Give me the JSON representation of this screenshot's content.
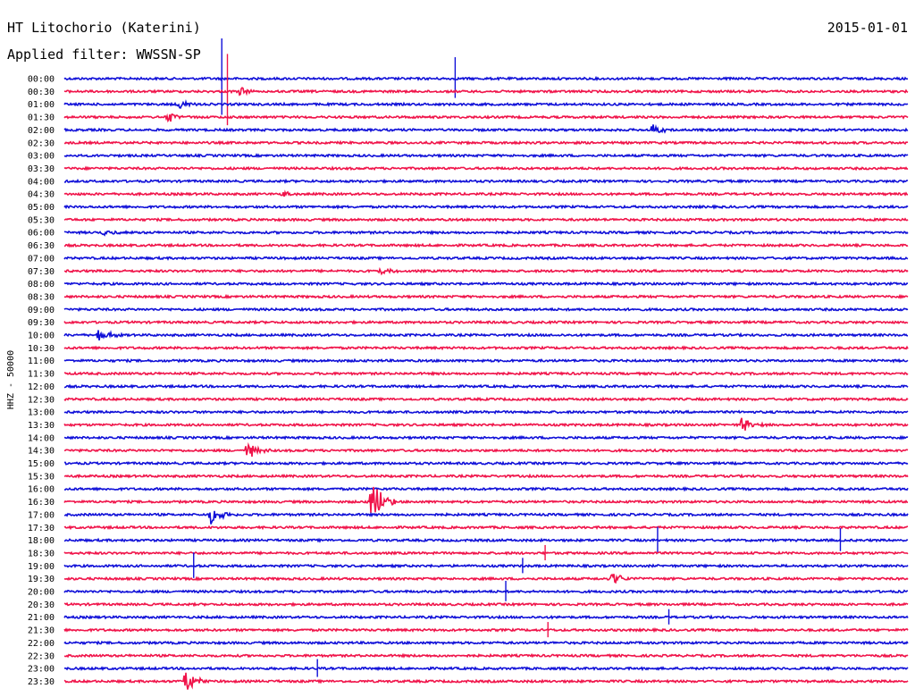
{
  "header": {
    "station": "HT Litochorio (Katerini)",
    "date": "2015-01-01",
    "filter": "Applied filter: WWSSN-SP"
  },
  "channel_label": "HHZ - 50000",
  "colors": {
    "even": "#1010d8",
    "odd": "#f0144a"
  },
  "chart_data": {
    "type": "line",
    "title": "HT Litochorio (Katerini)",
    "subtitle": "Applied filter: WWSSN-SP",
    "ylabel": "HHZ - 50000",
    "row_labels": [
      "00:00",
      "00:30",
      "01:00",
      "01:30",
      "02:00",
      "02:30",
      "03:00",
      "03:30",
      "04:00",
      "04:30",
      "05:00",
      "05:30",
      "06:00",
      "06:30",
      "07:00",
      "07:30",
      "08:00",
      "08:30",
      "09:00",
      "09:30",
      "10:00",
      "10:30",
      "11:00",
      "11:30",
      "12:00",
      "12:30",
      "13:00",
      "13:30",
      "14:00",
      "14:30",
      "15:00",
      "15:30",
      "16:00",
      "16:30",
      "17:00",
      "17:30",
      "18:00",
      "18:30",
      "19:00",
      "19:30",
      "20:00",
      "20:30",
      "21:00",
      "21:30",
      "22:00",
      "22:30",
      "23:00",
      "23:30"
    ],
    "x_range_minutes": [
      0,
      30
    ],
    "events": [
      {
        "row": 0,
        "minute": 5.6,
        "amplitude": 3.0,
        "kind": "spike"
      },
      {
        "row": 0,
        "minute": 13.9,
        "amplitude": 1.6,
        "kind": "spike"
      },
      {
        "row": 1,
        "minute": 5.8,
        "amplitude": 2.8,
        "kind": "spike"
      },
      {
        "row": 1,
        "minute": 6.2,
        "amplitude": 0.4,
        "kind": "burst"
      },
      {
        "row": 2,
        "minute": 4.1,
        "amplitude": 0.35,
        "kind": "burst"
      },
      {
        "row": 3,
        "minute": 3.7,
        "amplitude": 0.5,
        "kind": "burst"
      },
      {
        "row": 4,
        "minute": 20.9,
        "amplitude": 0.5,
        "kind": "burst"
      },
      {
        "row": 9,
        "minute": 7.8,
        "amplitude": 0.3,
        "kind": "burst"
      },
      {
        "row": 12,
        "minute": 1.4,
        "amplitude": 0.3,
        "kind": "burst"
      },
      {
        "row": 15,
        "minute": 11.2,
        "amplitude": 0.4,
        "kind": "burst"
      },
      {
        "row": 20,
        "minute": 1.2,
        "amplitude": 0.55,
        "kind": "burst"
      },
      {
        "row": 27,
        "minute": 24.1,
        "amplitude": 0.75,
        "kind": "burst"
      },
      {
        "row": 29,
        "minute": 6.5,
        "amplitude": 0.8,
        "kind": "burst"
      },
      {
        "row": 33,
        "minute": 10.9,
        "amplitude": 2.4,
        "kind": "burst"
      },
      {
        "row": 34,
        "minute": 5.2,
        "amplitude": 0.8,
        "kind": "burst"
      },
      {
        "row": 36,
        "minute": 21.1,
        "amplitude": 1.0,
        "kind": "spike"
      },
      {
        "row": 36,
        "minute": 27.6,
        "amplitude": 0.9,
        "kind": "spike"
      },
      {
        "row": 37,
        "minute": 17.1,
        "amplitude": 0.6,
        "kind": "spike"
      },
      {
        "row": 38,
        "minute": 4.6,
        "amplitude": 1.0,
        "kind": "spike"
      },
      {
        "row": 38,
        "minute": 16.3,
        "amplitude": 0.6,
        "kind": "spike"
      },
      {
        "row": 39,
        "minute": 19.5,
        "amplitude": 0.6,
        "kind": "burst"
      },
      {
        "row": 40,
        "minute": 15.7,
        "amplitude": 0.8,
        "kind": "spike"
      },
      {
        "row": 42,
        "minute": 21.5,
        "amplitude": 0.6,
        "kind": "spike"
      },
      {
        "row": 43,
        "minute": 17.2,
        "amplitude": 0.6,
        "kind": "spike"
      },
      {
        "row": 46,
        "minute": 9.0,
        "amplitude": 0.7,
        "kind": "spike"
      },
      {
        "row": 47,
        "minute": 4.3,
        "amplitude": 1.1,
        "kind": "burst"
      }
    ]
  }
}
